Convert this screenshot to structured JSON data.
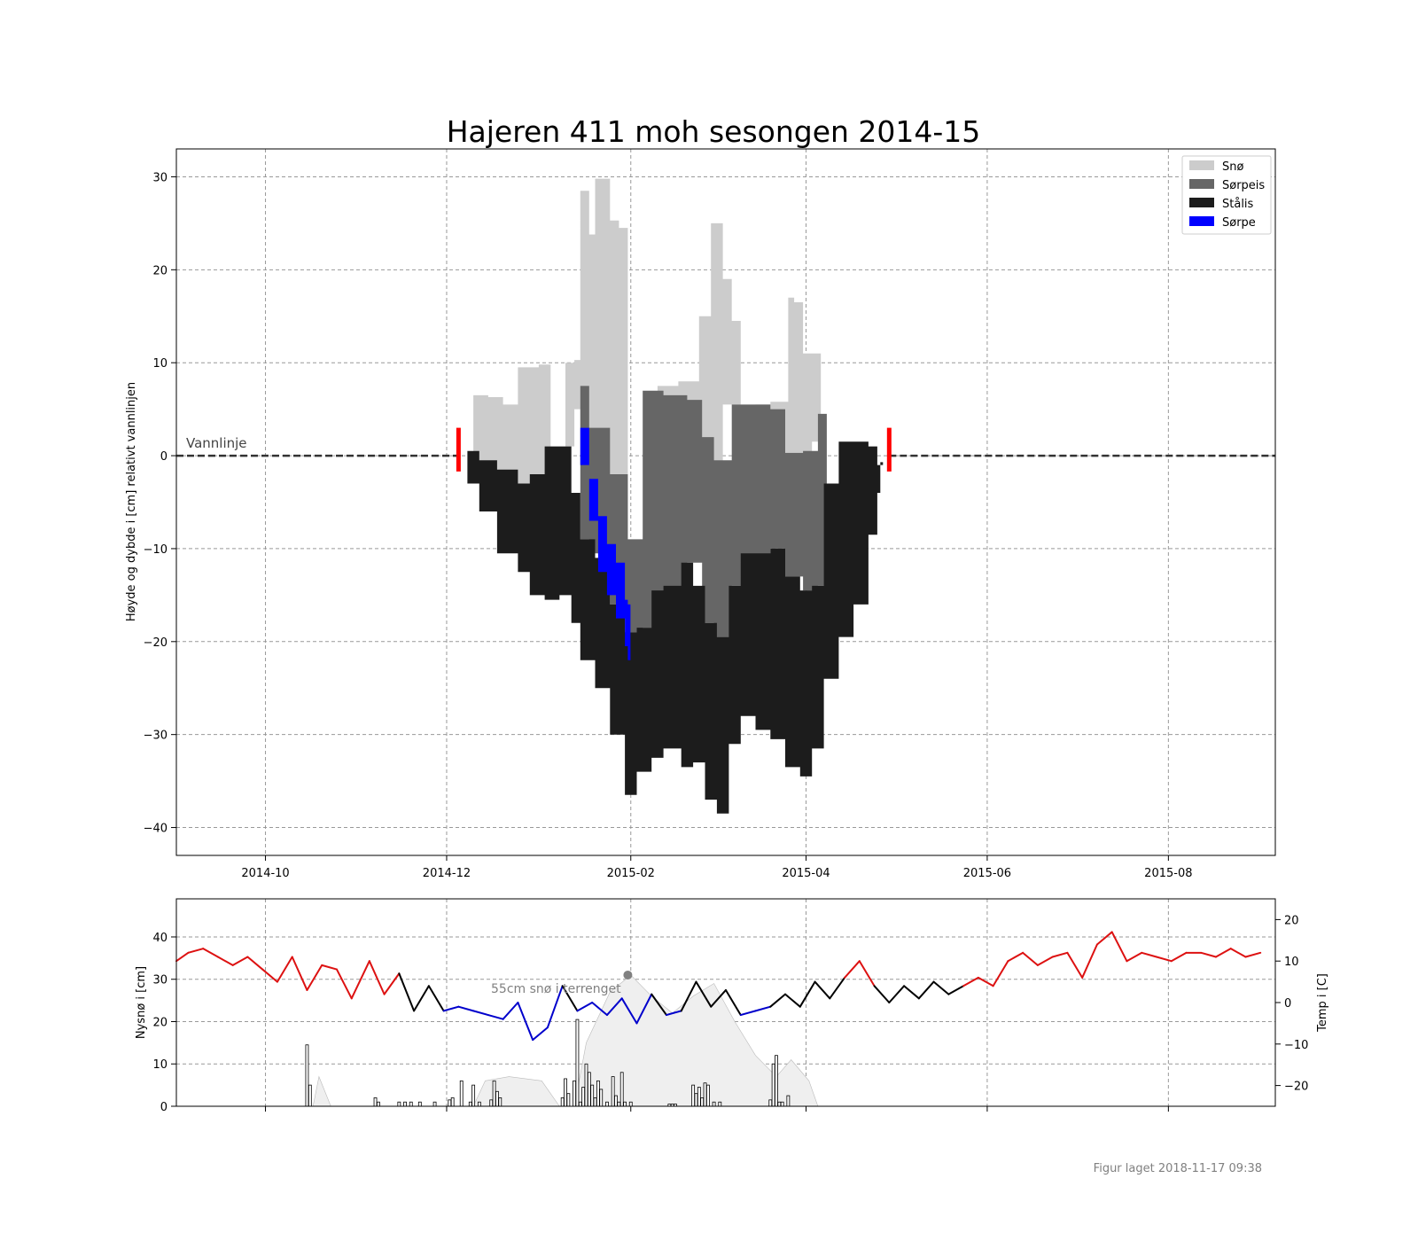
{
  "title": "Hajeren 411 moh sesongen 2014-15",
  "footer": "Figur laget 2018-11-17 09:38",
  "colors": {
    "snow": "#cccccc",
    "slush_ice": "#666666",
    "black_ice": "#1c1c1c",
    "slush": "#0000ff",
    "warm": "#dd1111",
    "cold": "#0000cc",
    "marker": "#ff0000",
    "grid": "#999999"
  },
  "chart_data": [
    {
      "type": "area",
      "title": "Hajeren 411 moh sesongen 2014-15",
      "xlabel": "",
      "ylabel": "Høyde og dybde i [cm] relativt vannlinjen",
      "xlim": [
        "2014-09-01",
        "2015-09-06"
      ],
      "ylim": [
        -43,
        33
      ],
      "xticks": [
        "2014-10",
        "2014-12",
        "2015-02",
        "2015-04",
        "2015-06",
        "2015-08"
      ],
      "yticks": [
        -40,
        -30,
        -20,
        -10,
        0,
        10,
        20,
        30
      ],
      "grid": true,
      "legend_position": "top-right",
      "legend": [
        "Snø",
        "Sørpeis",
        "Stålis",
        "Sørpe"
      ],
      "annotation": "Vannlinje",
      "ice_on": "2014-12-05",
      "ice_off": "2015-04-29",
      "series": [
        {
          "name": "Snø",
          "x": [
            "2014-12-08",
            "2014-12-10",
            "2014-12-15",
            "2014-12-20",
            "2014-12-25",
            "2015-01-01",
            "2015-01-05",
            "2015-01-10",
            "2015-01-13",
            "2015-01-15",
            "2015-01-18",
            "2015-01-20",
            "2015-01-25",
            "2015-01-28",
            "2015-01-31",
            "2015-02-03",
            "2015-02-10",
            "2015-02-17",
            "2015-02-24",
            "2015-02-28",
            "2015-03-04",
            "2015-03-07",
            "2015-03-10",
            "2015-03-15",
            "2015-03-20",
            "2015-03-26",
            "2015-03-28",
            "2015-03-31",
            "2015-04-03",
            "2015-04-06"
          ],
          "top": [
            0.3,
            6.5,
            6.3,
            5.5,
            9.5,
            9.8,
            0.5,
            10,
            10.3,
            28.5,
            23.8,
            29.8,
            25.3,
            24.5,
            -9.5,
            7,
            7.5,
            8,
            15,
            25,
            19,
            14.5,
            5.5,
            5.5,
            5.8,
            17,
            16.5,
            11,
            11,
            -5
          ],
          "bottom": [
            0.3,
            -1.0,
            -2.0,
            -3.5,
            -3.0,
            -3.2,
            0.5,
            1.0,
            5.0,
            3.0,
            0.0,
            -5.0,
            -7.0,
            -9.0,
            -9.5,
            7,
            6.0,
            5.0,
            -0.5,
            -0.7,
            5.5,
            5.5,
            5.5,
            4.5,
            0.3,
            0.3,
            0.3,
            0.3,
            1.5,
            -5
          ]
        },
        {
          "name": "Sørpeis",
          "x": [
            "2015-01-15",
            "2015-01-18",
            "2015-01-25",
            "2015-01-31",
            "2015-02-05",
            "2015-02-12",
            "2015-02-20",
            "2015-02-25",
            "2015-03-01",
            "2015-03-07",
            "2015-03-12",
            "2015-03-20",
            "2015-03-25",
            "2015-03-31",
            "2015-04-05",
            "2015-04-08"
          ],
          "top": [
            7.5,
            3.0,
            -2.0,
            -9.0,
            7.0,
            6.5,
            6.0,
            2.0,
            -0.5,
            5.5,
            5.5,
            5.0,
            0.3,
            0.5,
            4.5,
            -3.0
          ],
          "bottom": [
            -9.0,
            -10.5,
            -16.0,
            -19.0,
            -18.5,
            -15.0,
            -11.5,
            -18.0,
            -19.5,
            -14.0,
            -12.0,
            -10.0,
            -13.0,
            -14.5,
            -14.0,
            -3.0
          ]
        },
        {
          "name": "Stålis",
          "x": [
            "2014-12-08",
            "2014-12-12",
            "2014-12-18",
            "2014-12-25",
            "2014-12-29",
            "2015-01-03",
            "2015-01-08",
            "2015-01-12",
            "2015-01-15",
            "2015-01-20",
            "2015-01-25",
            "2015-01-30",
            "2015-02-03",
            "2015-02-08",
            "2015-02-12",
            "2015-02-18",
            "2015-02-22",
            "2015-02-26",
            "2015-03-02",
            "2015-03-06",
            "2015-03-10",
            "2015-03-15",
            "2015-03-20",
            "2015-03-25",
            "2015-03-30",
            "2015-04-03",
            "2015-04-07",
            "2015-04-12",
            "2015-04-17",
            "2015-04-22",
            "2015-04-25",
            "2015-04-26"
          ],
          "top": [
            0.5,
            -0.5,
            -1.5,
            -3.0,
            -2.0,
            1.0,
            1.0,
            -4.0,
            -9.0,
            -11.0,
            -16.0,
            -19.0,
            -18.5,
            -14.5,
            -14.0,
            -11.5,
            -14.0,
            -18.0,
            -19.5,
            -14.0,
            -10.5,
            -10.5,
            -10.0,
            -13.0,
            -14.5,
            -14.0,
            -3.0,
            1.5,
            1.5,
            1.0,
            -1.0,
            -0.7
          ],
          "bottom": [
            -3.0,
            -6.0,
            -10.5,
            -12.5,
            -15.0,
            -15.5,
            -15.0,
            -18.0,
            -22.0,
            -25.0,
            -30.0,
            -36.5,
            -34.0,
            -32.5,
            -31.5,
            -33.5,
            -33.0,
            -37.0,
            -38.5,
            -31.0,
            -28.0,
            -29.5,
            -30.5,
            -33.5,
            -34.5,
            -31.5,
            -24.0,
            -19.5,
            -16.0,
            -8.5,
            -4.0,
            -1.0
          ]
        },
        {
          "name": "Sørpe",
          "x": [
            "2015-01-15",
            "2015-01-18",
            "2015-01-21",
            "2015-01-24",
            "2015-01-27",
            "2015-01-30",
            "2015-01-31"
          ],
          "top": [
            3.0,
            -2.5,
            -6.5,
            -9.5,
            -11.5,
            -15.5,
            -16.0
          ],
          "bottom": [
            -1.0,
            -7.0,
            -12.5,
            -15.0,
            -17.5,
            -20.5,
            -22.0
          ]
        }
      ]
    },
    {
      "type": "bar",
      "xlabel": "",
      "ylabel": "Nysnø i [cm]",
      "ylim": [
        0,
        49
      ],
      "yticks": [
        0,
        10,
        20,
        30,
        40
      ],
      "grid": true,
      "annotation": "55cm snø i terrenget",
      "annotation_point": {
        "date": "2015-01-31",
        "value": 31
      },
      "series": [
        {
          "name": "Nysnø",
          "x": [
            "2014-10-15",
            "2014-10-16",
            "2014-11-07",
            "2014-11-08",
            "2014-11-15",
            "2014-11-17",
            "2014-11-19",
            "2014-11-22",
            "2014-11-27",
            "2014-12-02",
            "2014-12-03",
            "2014-12-06",
            "2014-12-09",
            "2014-12-10",
            "2014-12-12",
            "2014-12-16",
            "2014-12-17",
            "2014-12-18",
            "2014-12-19",
            "2015-01-09",
            "2015-01-10",
            "2015-01-11",
            "2015-01-13",
            "2015-01-14",
            "2015-01-15",
            "2015-01-16",
            "2015-01-17",
            "2015-01-18",
            "2015-01-19",
            "2015-01-20",
            "2015-01-21",
            "2015-01-22",
            "2015-01-24",
            "2015-01-26",
            "2015-01-27",
            "2015-01-28",
            "2015-01-29",
            "2015-01-30",
            "2015-02-01",
            "2015-02-14",
            "2015-02-15",
            "2015-02-16",
            "2015-02-22",
            "2015-02-23",
            "2015-02-24",
            "2015-02-25",
            "2015-02-26",
            "2015-02-27",
            "2015-03-01",
            "2015-03-03",
            "2015-03-20",
            "2015-03-21",
            "2015-03-22",
            "2015-03-23",
            "2015-03-24",
            "2015-03-26"
          ],
          "values": [
            14.5,
            5,
            2,
            1,
            1,
            1,
            1,
            1,
            1,
            1.5,
            2,
            6,
            1,
            5,
            1,
            1.5,
            6,
            3.5,
            2,
            2,
            6.5,
            3,
            6,
            20.5,
            1,
            4.5,
            10,
            8,
            5,
            2,
            6,
            4,
            1,
            7,
            2.5,
            1,
            8,
            1,
            1,
            0.5,
            0.5,
            0.5,
            5,
            3,
            4.5,
            2,
            5.5,
            5,
            1,
            1,
            1.5,
            10,
            12,
            1,
            1,
            2.5
          ]
        }
      ]
    },
    {
      "type": "line",
      "xlabel": "",
      "ylabel": "Temp i [C]",
      "ylim": [
        -25,
        25
      ],
      "yticks": [
        -20,
        -10,
        0,
        10,
        20
      ],
      "series": [
        {
          "name": "Temp",
          "x": [
            "2014-09-01",
            "2014-09-05",
            "2014-09-10",
            "2014-09-15",
            "2014-09-20",
            "2014-09-25",
            "2014-09-30",
            "2014-10-05",
            "2014-10-10",
            "2014-10-15",
            "2014-10-20",
            "2014-10-25",
            "2014-10-30",
            "2014-11-05",
            "2014-11-10",
            "2014-11-15",
            "2014-11-20",
            "2014-11-25",
            "2014-11-30",
            "2014-12-05",
            "2014-12-10",
            "2014-12-15",
            "2014-12-20",
            "2014-12-25",
            "2014-12-30",
            "2015-01-04",
            "2015-01-09",
            "2015-01-14",
            "2015-01-19",
            "2015-01-24",
            "2015-01-29",
            "2015-02-03",
            "2015-02-08",
            "2015-02-13",
            "2015-02-18",
            "2015-02-23",
            "2015-02-28",
            "2015-03-05",
            "2015-03-10",
            "2015-03-15",
            "2015-03-20",
            "2015-03-25",
            "2015-03-30",
            "2015-04-04",
            "2015-04-09",
            "2015-04-14",
            "2015-04-19",
            "2015-04-24",
            "2015-04-29",
            "2015-05-04",
            "2015-05-09",
            "2015-05-14",
            "2015-05-19",
            "2015-05-24",
            "2015-05-29",
            "2015-06-03",
            "2015-06-08",
            "2015-06-13",
            "2015-06-18",
            "2015-06-23",
            "2015-06-28",
            "2015-07-03",
            "2015-07-08",
            "2015-07-13",
            "2015-07-18",
            "2015-07-23",
            "2015-07-28",
            "2015-08-02",
            "2015-08-07",
            "2015-08-12",
            "2015-08-17",
            "2015-08-22",
            "2015-08-27",
            "2015-09-01"
          ],
          "values": [
            10,
            12,
            13,
            11,
            9,
            11,
            8,
            5,
            11,
            3,
            9,
            8,
            1,
            10,
            2,
            7,
            -2,
            4,
            -2,
            -1,
            -2,
            -3,
            -4,
            0,
            -9,
            -6,
            4,
            -2,
            0,
            -3,
            1,
            -5,
            2,
            -3,
            -2,
            5,
            -1,
            3,
            -3,
            -2,
            -1,
            2,
            -1,
            5,
            1,
            6,
            10,
            4,
            0,
            4,
            1,
            5,
            2,
            4,
            6,
            4,
            10,
            12,
            9,
            11,
            12,
            6,
            14,
            17,
            10,
            12,
            11,
            10,
            12,
            12,
            11,
            13,
            11,
            12
          ]
        }
      ]
    }
  ]
}
